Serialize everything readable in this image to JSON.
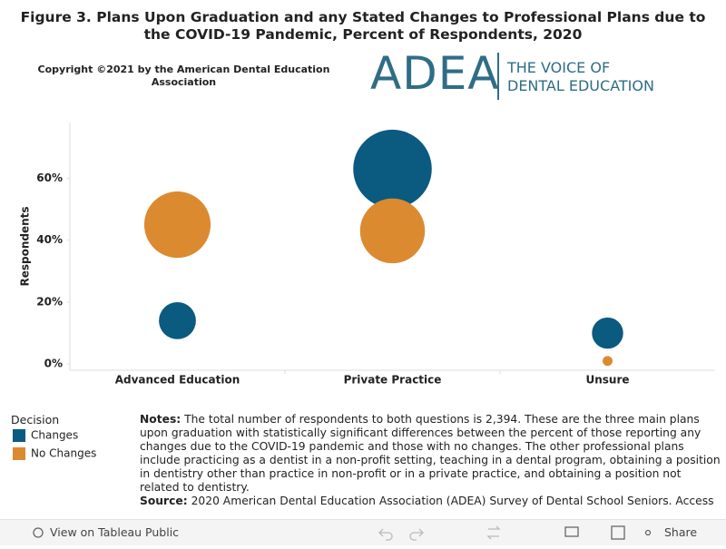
{
  "chart_data": {
    "type": "bubble",
    "title": "Figure 3. Plans Upon Graduation and any Stated Changes to Professional Plans due to the COVID-19 Pandemic, Percent of Respondents, 2020",
    "y_label": "Respondents",
    "categories": [
      "Advanced Education",
      "Private Practice",
      "Unsure"
    ],
    "legend_title": "Decision",
    "series": [
      {
        "name": "Changes",
        "color": "#0b5a80",
        "values": [
          14,
          63,
          10
        ]
      },
      {
        "name": "No Changes",
        "color": "#dc8a30",
        "values": [
          45,
          43,
          1
        ]
      }
    ],
    "ylim": [
      -2,
      78
    ],
    "yticks": [
      {
        "value": 0,
        "label": "0%"
      },
      {
        "value": 20,
        "label": "20%"
      },
      {
        "value": 40,
        "label": "40%"
      },
      {
        "value": 60,
        "label": "60%"
      }
    ]
  },
  "copyright": "Copyright ©2021 by the American Dental Education Association",
  "logo": {
    "mark": "ADEA",
    "line1": "THE VOICE OF",
    "line2": "DENTAL EDUCATION"
  },
  "notes": {
    "label": "Notes:",
    "text": "The total number of respondents to both questions is 2,394. These are the three main plans upon graduation with statistically significant differences between the percent of those reporting any changes due to the COVID-19 pandemic and those with no changes. The other professional plans include practicing as a dentist in a non-profit setting, teaching in a dental program, obtaining a position in dentistry other than practice in non-profit or in a private practice, and obtaining a position not related to dentistry.",
    "source_label": "Source:",
    "source_text": "2020 American Dental Education Association (ADEA) Survey of Dental School Seniors. Access"
  },
  "toolbar": {
    "view": "View on Tableau Public",
    "share": "Share"
  }
}
